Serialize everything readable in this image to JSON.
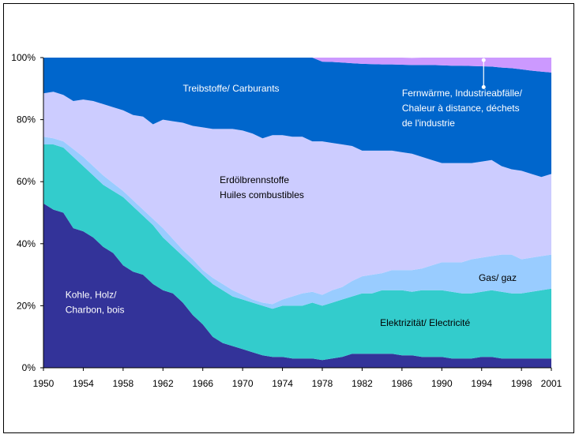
{
  "chart_data": {
    "type": "area",
    "stacked": true,
    "title": "",
    "xlabel": "",
    "ylabel": "",
    "ylim": [
      0,
      100
    ],
    "y_unit": "%",
    "yticks": [
      "0%",
      "20%",
      "40%",
      "60%",
      "80%",
      "100%"
    ],
    "xticks": [
      "1950",
      "1954",
      "1958",
      "1962",
      "1966",
      "1970",
      "1974",
      "1978",
      "1982",
      "1986",
      "1990",
      "1994",
      "1998",
      "2001"
    ],
    "grid": false,
    "legend": "none (inline labels)",
    "x": [
      1950,
      1951,
      1952,
      1953,
      1954,
      1955,
      1956,
      1957,
      1958,
      1959,
      1960,
      1961,
      1962,
      1963,
      1964,
      1965,
      1966,
      1967,
      1968,
      1969,
      1970,
      1971,
      1972,
      1973,
      1974,
      1975,
      1976,
      1977,
      1978,
      1979,
      1980,
      1981,
      1982,
      1983,
      1984,
      1985,
      1986,
      1987,
      1988,
      1989,
      1990,
      1991,
      1992,
      1993,
      1994,
      1995,
      1996,
      1997,
      1998,
      1999,
      2000,
      2001
    ],
    "series": [
      {
        "name": "Kohle, Holz/ Charbon, bois",
        "color": "#333399",
        "values": [
          53,
          51,
          50,
          45,
          44,
          42,
          39,
          37,
          33,
          31,
          30,
          27,
          25,
          24,
          21,
          17,
          14,
          10,
          8,
          7,
          6,
          5,
          4,
          3.5,
          3.5,
          3,
          3,
          3,
          2.5,
          3,
          3.5,
          4.5,
          4.5,
          4.5,
          4.5,
          4.5,
          4,
          4,
          3.5,
          3.5,
          3.5,
          3,
          3,
          3,
          3.5,
          3.5,
          3,
          3,
          3,
          3,
          3,
          3
        ]
      },
      {
        "name": "Elektrizität/ Electricité",
        "color": "#33CCCC",
        "values": [
          19,
          21,
          21,
          23,
          21,
          20,
          20,
          20,
          22,
          21,
          19,
          19,
          17,
          15,
          15,
          16,
          16,
          17,
          17,
          16,
          16,
          16,
          16,
          15.5,
          16.5,
          17,
          17,
          18,
          17.5,
          18,
          18.5,
          18.5,
          19.5,
          19.5,
          20.5,
          20.5,
          21,
          20.5,
          21.5,
          21.5,
          21.5,
          21.5,
          21,
          21,
          21,
          21.5,
          21.5,
          21,
          21,
          21.5,
          22,
          22.5
        ]
      },
      {
        "name": "Gas/ gaz",
        "color": "#99CCFF",
        "values": [
          2.5,
          2,
          2,
          2.5,
          3,
          3,
          3,
          2.5,
          2,
          2,
          2,
          2,
          3,
          2.5,
          2,
          2,
          1.5,
          2,
          2,
          2,
          1.5,
          1,
          1,
          1.5,
          2,
          3,
          4,
          3.5,
          3.5,
          4,
          4,
          5,
          5.5,
          6,
          5.5,
          6.5,
          6.5,
          7,
          7,
          8,
          9,
          9.5,
          10,
          11,
          11,
          11,
          12,
          12.5,
          11,
          11,
          11,
          11
        ]
      },
      {
        "name": "Erdölbrennstoffe Huiles combustibles",
        "color": "#CCCCFF",
        "values": [
          14,
          15,
          15,
          15.5,
          18.5,
          21,
          23,
          24.5,
          26,
          27.5,
          30,
          30.5,
          35,
          38,
          41,
          43,
          46,
          48,
          50,
          52,
          53,
          53.5,
          53,
          54.5,
          53,
          51.5,
          50.5,
          48.5,
          49.5,
          47.5,
          46,
          43.5,
          40.5,
          40,
          39.5,
          38.5,
          38,
          37.5,
          36,
          34,
          32,
          32,
          32,
          31,
          31,
          31,
          28.5,
          27.5,
          28.5,
          27,
          25.5,
          26
        ]
      },
      {
        "name": "Treibstoffe/ Carburants",
        "color": "#0066CC",
        "values": [
          11.5,
          11,
          12,
          14,
          13.5,
          14,
          15,
          16,
          17,
          18.5,
          19,
          21.5,
          20,
          20.5,
          21,
          22,
          22.5,
          23,
          23,
          23,
          23.5,
          24.5,
          26,
          25,
          25,
          25.5,
          25.5,
          27,
          25.7,
          26.1,
          26.4,
          26.7,
          28,
          27.9,
          27.8,
          27.8,
          28.2,
          28.6,
          29.6,
          30.6,
          31.5,
          31.4,
          31.4,
          31.3,
          30.7,
          30.1,
          31.8,
          32.6,
          32.7,
          33.3,
          34,
          32.7
        ]
      },
      {
        "name": "Fernwärme, Industrieabfälle/ Chaleur à distance, déchets de l'industrie",
        "color": "#CC99FF",
        "values": [
          0,
          0,
          0,
          0,
          0,
          0,
          0,
          0,
          0,
          0,
          0,
          0,
          0,
          0,
          0,
          0,
          0,
          0,
          0,
          0,
          0,
          0,
          0,
          0,
          0,
          0,
          0,
          0,
          1.3,
          1.4,
          1.6,
          1.8,
          2,
          2.1,
          2.2,
          2.2,
          2.3,
          2.3,
          2.4,
          2.4,
          2.5,
          2.6,
          2.6,
          2.7,
          2.8,
          2.9,
          3.2,
          3.4,
          3.8,
          4.2,
          4.5,
          4.8
        ]
      }
    ],
    "annotations": [
      {
        "id": "coal",
        "lines": [
          "Kohle, Holz/",
          "Charbon, bois"
        ],
        "color": "#FFFFFF"
      },
      {
        "id": "oil",
        "lines": [
          "Erdölbrennstoffe",
          "Huiles combustibles"
        ],
        "color": "#000000"
      },
      {
        "id": "fuels",
        "lines": [
          "Treibstoffe/ Carburants"
        ],
        "color": "#FFFFFF"
      },
      {
        "id": "district",
        "lines": [
          "Fernwärme, Industrieabfälle/",
          "Chaleur à distance, déchets",
          "de l'industrie"
        ],
        "color": "#FFFFFF"
      },
      {
        "id": "gas",
        "lines": [
          "Gas/ gaz"
        ],
        "color": "#000000"
      },
      {
        "id": "elec",
        "lines": [
          "Elektrizität/ Electricité"
        ],
        "color": "#000000"
      }
    ]
  }
}
